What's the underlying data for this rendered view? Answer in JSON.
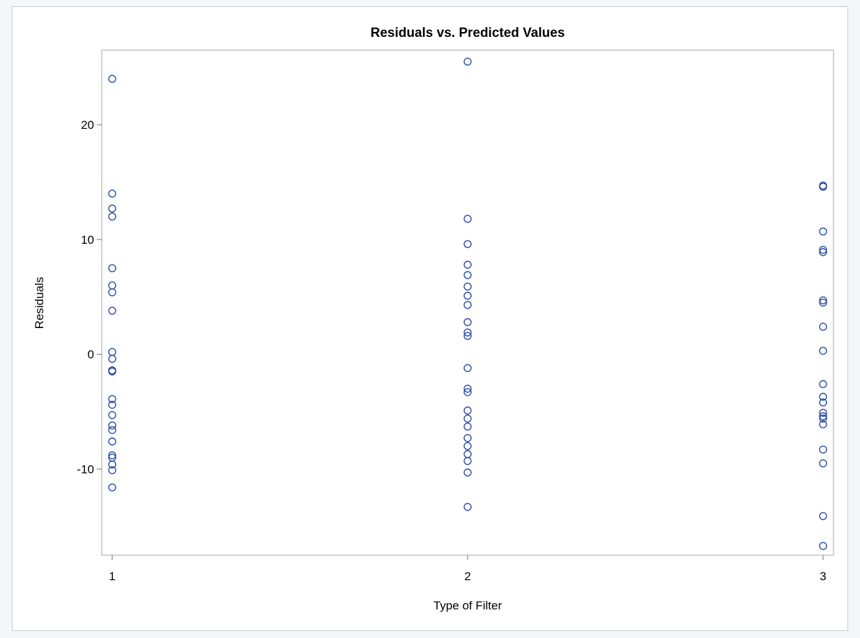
{
  "chart_data": {
    "type": "scatter",
    "title": "Residuals vs. Predicted Values",
    "xlabel": "Type of Filter",
    "ylabel": "Residuals",
    "xlim": [
      1,
      3
    ],
    "ylim": [
      -17.5,
      26.5
    ],
    "x_ticks": [
      1,
      2,
      3
    ],
    "y_ticks": [
      -10,
      0,
      10,
      20
    ],
    "grid": false,
    "legend": false,
    "marker_color": "#2a4aa8",
    "marker": "open-circle",
    "points": [
      {
        "x": 1,
        "y": 24.0
      },
      {
        "x": 1,
        "y": 14.0
      },
      {
        "x": 1,
        "y": 12.7
      },
      {
        "x": 1,
        "y": 12.0
      },
      {
        "x": 1,
        "y": 7.5
      },
      {
        "x": 1,
        "y": 6.0
      },
      {
        "x": 1,
        "y": 5.4
      },
      {
        "x": 1,
        "y": 3.8
      },
      {
        "x": 1,
        "y": 0.2
      },
      {
        "x": 1,
        "y": -0.4
      },
      {
        "x": 1,
        "y": -1.4
      },
      {
        "x": 1,
        "y": -1.5
      },
      {
        "x": 1,
        "y": -3.9
      },
      {
        "x": 1,
        "y": -4.4
      },
      {
        "x": 1,
        "y": -5.3
      },
      {
        "x": 1,
        "y": -6.2
      },
      {
        "x": 1,
        "y": -6.6
      },
      {
        "x": 1,
        "y": -7.6
      },
      {
        "x": 1,
        "y": -8.8
      },
      {
        "x": 1,
        "y": -9.0
      },
      {
        "x": 1,
        "y": -9.6
      },
      {
        "x": 1,
        "y": -10.1
      },
      {
        "x": 1,
        "y": -11.6
      },
      {
        "x": 2,
        "y": 25.5
      },
      {
        "x": 2,
        "y": 11.8
      },
      {
        "x": 2,
        "y": 9.6
      },
      {
        "x": 2,
        "y": 7.8
      },
      {
        "x": 2,
        "y": 6.9
      },
      {
        "x": 2,
        "y": 5.9
      },
      {
        "x": 2,
        "y": 5.1
      },
      {
        "x": 2,
        "y": 4.3
      },
      {
        "x": 2,
        "y": 2.8
      },
      {
        "x": 2,
        "y": 1.9
      },
      {
        "x": 2,
        "y": 1.6
      },
      {
        "x": 2,
        "y": -1.2
      },
      {
        "x": 2,
        "y": -3.0
      },
      {
        "x": 2,
        "y": -3.3
      },
      {
        "x": 2,
        "y": -4.9
      },
      {
        "x": 2,
        "y": -5.6
      },
      {
        "x": 2,
        "y": -6.3
      },
      {
        "x": 2,
        "y": -7.3
      },
      {
        "x": 2,
        "y": -8.0
      },
      {
        "x": 2,
        "y": -8.7
      },
      {
        "x": 2,
        "y": -9.3
      },
      {
        "x": 2,
        "y": -10.3
      },
      {
        "x": 2,
        "y": -13.3
      },
      {
        "x": 3,
        "y": 14.7
      },
      {
        "x": 3,
        "y": 14.6
      },
      {
        "x": 3,
        "y": 10.7
      },
      {
        "x": 3,
        "y": 9.1
      },
      {
        "x": 3,
        "y": 8.9
      },
      {
        "x": 3,
        "y": 4.7
      },
      {
        "x": 3,
        "y": 4.5
      },
      {
        "x": 3,
        "y": 2.4
      },
      {
        "x": 3,
        "y": 0.3
      },
      {
        "x": 3,
        "y": -2.6
      },
      {
        "x": 3,
        "y": -3.7
      },
      {
        "x": 3,
        "y": -4.2
      },
      {
        "x": 3,
        "y": -5.1
      },
      {
        "x": 3,
        "y": -5.4
      },
      {
        "x": 3,
        "y": -5.6
      },
      {
        "x": 3,
        "y": -6.1
      },
      {
        "x": 3,
        "y": -8.3
      },
      {
        "x": 3,
        "y": -9.5
      },
      {
        "x": 3,
        "y": -14.1
      },
      {
        "x": 3,
        "y": -16.7
      }
    ]
  }
}
